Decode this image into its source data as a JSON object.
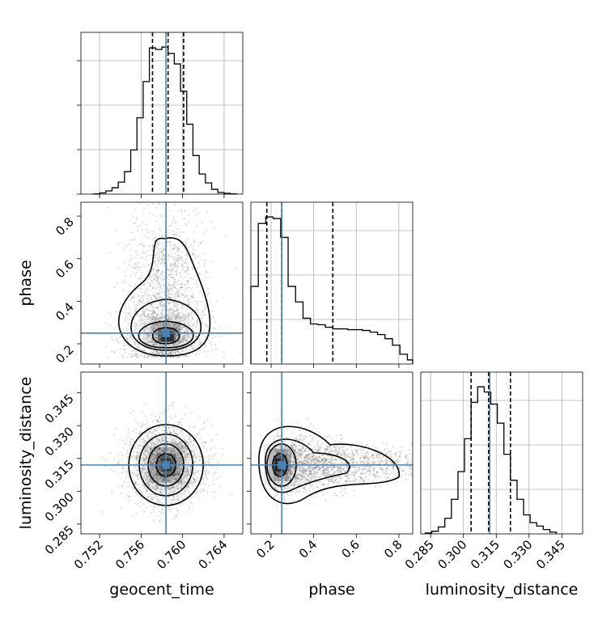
{
  "chart_data": {
    "type": "corner",
    "parameters": [
      "geocent_time",
      "phase",
      "luminosity_distance"
    ],
    "truths": {
      "geocent_time": 0.7584,
      "phase": 0.25,
      "luminosity_distance": 0.312
    },
    "truth_color": "#4682b4",
    "axes": {
      "geocent_time": {
        "range": [
          0.7502,
          0.7658
        ],
        "ticks": [
          0.752,
          0.756,
          0.76,
          0.764
        ],
        "tick_labels": [
          "0.752",
          "0.756",
          "0.760",
          "0.764"
        ]
      },
      "phase": {
        "range": [
          0.105,
          0.865
        ],
        "ticks": [
          0.2,
          0.4,
          0.6,
          0.8
        ],
        "tick_labels": [
          "0.2",
          "0.4",
          "0.6",
          "0.8"
        ]
      },
      "luminosity_distance": {
        "range": [
          0.2805,
          0.3545
        ],
        "ticks": [
          0.285,
          0.3,
          0.315,
          0.33,
          0.345
        ],
        "tick_labels": [
          "0.285",
          "0.300",
          "0.315",
          "0.330",
          "0.345"
        ]
      }
    },
    "histograms": [
      {
        "param": "geocent_time",
        "bin_edges": [
          0.7514,
          0.752,
          0.7526,
          0.7532,
          0.7538,
          0.7544,
          0.755,
          0.7556,
          0.7562,
          0.7568,
          0.7574,
          0.758,
          0.7586,
          0.7592,
          0.7598,
          0.7604,
          0.761,
          0.7616,
          0.7622,
          0.7628,
          0.7634,
          0.764,
          0.7646,
          0.7652
        ],
        "counts": [
          0.2,
          1.5,
          4,
          8,
          15,
          28,
          55,
          95,
          140,
          182,
          180,
          183,
          175,
          162,
          128,
          87,
          48,
          25,
          14,
          6,
          2,
          1,
          0.4
        ],
        "quantiles": [
          0.7571,
          0.7586,
          0.7601
        ]
      },
      {
        "param": "phase",
        "bin_edges": [
          0.105,
          0.14,
          0.175,
          0.21,
          0.245,
          0.28,
          0.315,
          0.35,
          0.385,
          0.42,
          0.455,
          0.49,
          0.525,
          0.56,
          0.595,
          0.63,
          0.665,
          0.7,
          0.735,
          0.77,
          0.805,
          0.84,
          0.865
        ],
        "counts": [
          95,
          172,
          180,
          178,
          155,
          95,
          76,
          56,
          49,
          48,
          45,
          43,
          43,
          42,
          42,
          41,
          39,
          36,
          31,
          23,
          12,
          5
        ],
        "quantiles": [
          0.18,
          0.25,
          0.49
        ]
      },
      {
        "param": "luminosity_distance",
        "bin_edges": [
          0.2825,
          0.2855,
          0.2885,
          0.2915,
          0.2945,
          0.2975,
          0.3005,
          0.3035,
          0.3065,
          0.3095,
          0.3125,
          0.3155,
          0.3185,
          0.3215,
          0.3245,
          0.3275,
          0.3305,
          0.3335,
          0.3365,
          0.3395,
          0.3425
        ],
        "counts": [
          1,
          3,
          8,
          18,
          40,
          72,
          110,
          152,
          170,
          164,
          150,
          128,
          92,
          62,
          40,
          22,
          13,
          9,
          5,
          2
        ],
        "quantiles": [
          0.3035,
          0.3115,
          0.3215
        ]
      }
    ],
    "contour_levels": [
      "0.5",
      "1",
      "1.5",
      "2"
    ]
  }
}
